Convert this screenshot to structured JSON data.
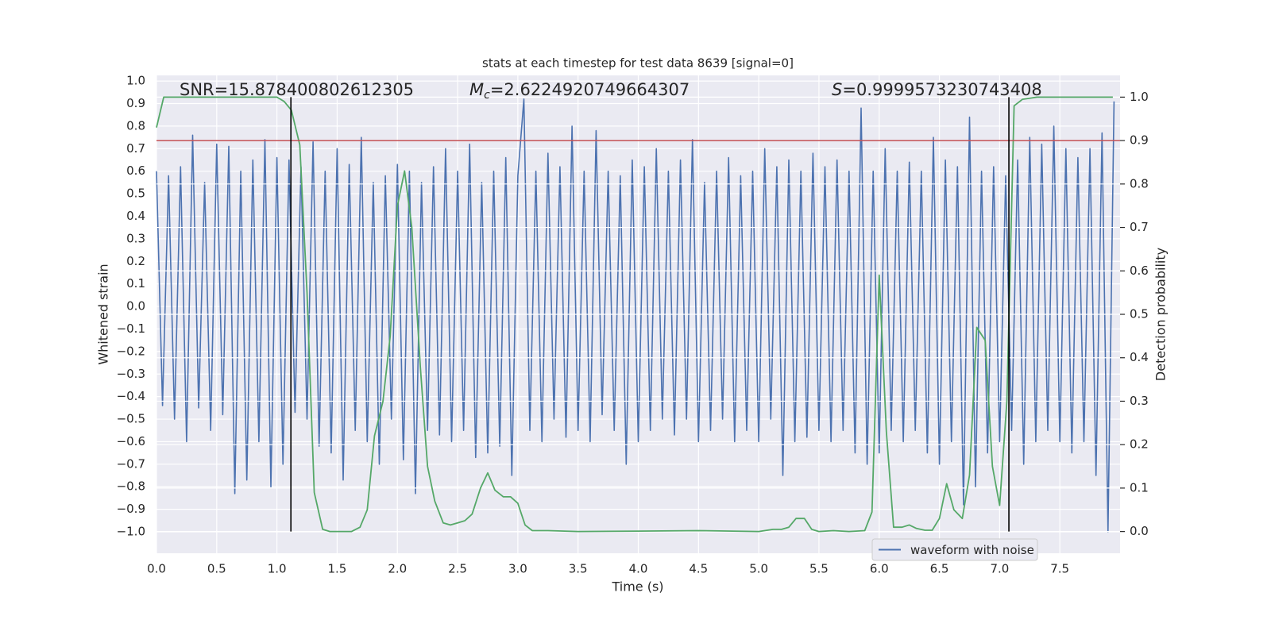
{
  "chart_data": {
    "type": "line",
    "title": "stats at each timestep for test data 8639 [signal=0]",
    "xlabel": "Time (s)",
    "ylabel": "Whitened strain",
    "y2label": "Detection probability",
    "xlim": [
      0,
      8.0
    ],
    "ylim": [
      -1.095,
      1.025
    ],
    "y2lim": [
      -0.05,
      1.05
    ],
    "grid": true,
    "legend": "lower right",
    "xticks": [
      {
        "value": 0,
        "label": "0.0"
      },
      0.5,
      {
        "value": 1,
        "label": "1.0"
      },
      1.5,
      {
        "value": 2,
        "label": "2.0"
      },
      2.5,
      {
        "value": 3,
        "label": "3.0"
      },
      3.5,
      {
        "value": 4,
        "label": "4.0"
      },
      4.5,
      {
        "value": 5,
        "label": "5.0"
      },
      5.5,
      {
        "value": 6,
        "label": "6.0"
      },
      6.5,
      {
        "value": 7,
        "label": "7.0"
      },
      7.5
    ],
    "yticks": [
      {
        "value": 1,
        "label": "1.0"
      },
      {
        "value": 0.9,
        "label": "0.9"
      },
      {
        "value": 0.8,
        "label": "0.8"
      },
      {
        "value": 0.7,
        "label": "0.7"
      },
      {
        "value": 0.6,
        "label": "0.6"
      },
      {
        "value": 0.5,
        "label": "0.5"
      },
      {
        "value": 0.4,
        "label": "0.4"
      },
      {
        "value": 0.3,
        "label": "0.3"
      },
      {
        "value": 0.2,
        "label": "0.2"
      },
      {
        "value": 0.1,
        "label": "0.1"
      },
      {
        "value": 0,
        "label": "0.0"
      },
      {
        "value": -0.1,
        "label": "−0.1"
      },
      {
        "value": -0.2,
        "label": "−0.2"
      },
      {
        "value": -0.3,
        "label": "−0.3"
      },
      {
        "value": -0.4,
        "label": "−0.4"
      },
      {
        "value": -0.5,
        "label": "−0.5"
      },
      {
        "value": -0.6,
        "label": "−0.6"
      },
      {
        "value": -0.7,
        "label": "−0.7"
      },
      {
        "value": -0.8,
        "label": "−0.8"
      },
      {
        "value": -0.9,
        "label": "−0.9"
      },
      {
        "value": -1,
        "label": "−1.0"
      }
    ],
    "y2ticks": [
      {
        "value": 0,
        "label": "0.0"
      },
      0.1,
      0.2,
      0.3,
      0.4,
      0.5,
      0.6,
      0.7,
      0.8,
      0.9,
      {
        "value": 1,
        "label": "1.0"
      }
    ],
    "annotations": [
      {
        "parts": [
          {
            "text": "SNR=15.878400802612305"
          }
        ]
      },
      {
        "parts": [
          {
            "text": "M",
            "style": "italic"
          },
          {
            "text": "c",
            "style": "subscript"
          },
          {
            "text": "=2.6224920749664307"
          }
        ]
      },
      {
        "parts": [
          {
            "text": "S",
            "style": "italic"
          },
          {
            "text": "=0.9999573230743408"
          }
        ]
      }
    ],
    "hlines": [
      {
        "value": 0.9,
        "axis": "y2",
        "color": "#c44e52"
      }
    ],
    "vlines": [
      {
        "x": 1.116,
        "y2": [
          0,
          1
        ],
        "color": "#000000"
      },
      {
        "x": 7.077,
        "y2": [
          0,
          1
        ],
        "color": "#000000"
      }
    ],
    "series": [
      {
        "name": "waveform with noise",
        "color": "#4c72b0",
        "axis": "y",
        "x": [
          0,
          0.05,
          0.1,
          0.15,
          0.2,
          0.25,
          0.3,
          0.35,
          0.4,
          0.45,
          0.5,
          0.55,
          0.6,
          0.65,
          0.7,
          0.75,
          0.8,
          0.85,
          0.9,
          0.95,
          1,
          1.05,
          1.1,
          1.15,
          1.2,
          1.25,
          1.3,
          1.35,
          1.4,
          1.45,
          1.5,
          1.55,
          1.6,
          1.65,
          1.7,
          1.75,
          1.8,
          1.85,
          1.9,
          1.95,
          2,
          2.05,
          2.1,
          2.15,
          2.2,
          2.25,
          2.3,
          2.35,
          2.4,
          2.45,
          2.5,
          2.55,
          2.6,
          2.65,
          2.7,
          2.75,
          2.8,
          2.85,
          2.9,
          2.95,
          3,
          3.05,
          3.1,
          3.15,
          3.2,
          3.25,
          3.3,
          3.35,
          3.4,
          3.45,
          3.5,
          3.55,
          3.6,
          3.65,
          3.7,
          3.75,
          3.8,
          3.85,
          3.9,
          3.95,
          4,
          4.05,
          4.1,
          4.15,
          4.2,
          4.25,
          4.3,
          4.35,
          4.4,
          4.45,
          4.5,
          4.55,
          4.6,
          4.65,
          4.7,
          4.75,
          4.8,
          4.85,
          4.9,
          4.95,
          5,
          5.05,
          5.1,
          5.15,
          5.2,
          5.25,
          5.3,
          5.35,
          5.4,
          5.45,
          5.5,
          5.55,
          5.6,
          5.65,
          5.7,
          5.75,
          5.8,
          5.85,
          5.9,
          5.95,
          6,
          6.05,
          6.1,
          6.15,
          6.2,
          6.25,
          6.3,
          6.35,
          6.4,
          6.45,
          6.5,
          6.55,
          6.6,
          6.65,
          6.7,
          6.75,
          6.8,
          6.85,
          6.9,
          6.95,
          7,
          7.05,
          7.1,
          7.15,
          7.2,
          7.25,
          7.3,
          7.35,
          7.4,
          7.45,
          7.5,
          7.55,
          7.6,
          7.65,
          7.7,
          7.75,
          7.8,
          7.85,
          7.9,
          7.95
        ],
        "values": [
          0.6,
          -0.44,
          0.58,
          -0.5,
          0.62,
          -0.6,
          0.76,
          -0.45,
          0.55,
          -0.55,
          0.72,
          -0.48,
          0.71,
          -0.83,
          0.6,
          -0.77,
          0.65,
          -0.6,
          0.74,
          -0.8,
          0.66,
          -0.7,
          0.65,
          -0.47,
          0.62,
          -0.5,
          0.73,
          -0.62,
          0.6,
          -0.65,
          0.7,
          -0.77,
          0.63,
          -0.55,
          0.75,
          -0.6,
          0.55,
          -0.7,
          0.58,
          -0.5,
          0.63,
          -0.68,
          0.6,
          -0.83,
          0.55,
          -0.55,
          0.62,
          -0.57,
          0.7,
          -0.6,
          0.6,
          -0.55,
          0.72,
          -0.67,
          0.55,
          -0.65,
          0.6,
          -0.62,
          0.66,
          -0.75,
          0.58,
          0.92,
          -0.55,
          0.6,
          -0.6,
          0.68,
          -0.5,
          0.62,
          -0.58,
          0.8,
          -0.55,
          0.6,
          -0.6,
          0.78,
          -0.48,
          0.6,
          -0.55,
          0.58,
          -0.7,
          0.65,
          -0.6,
          0.62,
          -0.55,
          0.7,
          -0.5,
          0.6,
          -0.57,
          0.65,
          -0.5,
          0.74,
          -0.6,
          0.55,
          -0.55,
          0.6,
          -0.5,
          0.66,
          -0.6,
          0.58,
          -0.55,
          0.6,
          -0.6,
          0.7,
          -0.5,
          0.62,
          -0.75,
          0.65,
          -0.6,
          0.6,
          -0.58,
          0.68,
          -0.55,
          0.62,
          -0.6,
          0.65,
          -0.55,
          0.6,
          -0.65,
          0.88,
          -0.7,
          0.6,
          -0.65,
          0.7,
          -0.55,
          0.6,
          -0.6,
          0.64,
          -0.55,
          0.6,
          -0.65,
          0.75,
          -0.7,
          0.65,
          -0.6,
          0.62,
          -0.88,
          0.84,
          -0.8,
          0.6,
          -0.65,
          0.62,
          -0.6,
          0.58,
          -0.55,
          0.65,
          -0.7,
          0.75,
          -0.6,
          0.72,
          -0.55,
          0.8,
          -0.6,
          0.7,
          -0.65,
          0.66,
          -0.6,
          0.7,
          -0.75,
          0.77,
          -1.0,
          0.91
        ]
      },
      {
        "color": "#55a868",
        "axis": "y2",
        "x": [
          0,
          0.06,
          1,
          1.06,
          1.12,
          1.19,
          1.25,
          1.31,
          1.38,
          1.44,
          1.62,
          1.69,
          1.75,
          1.81,
          1.88,
          1.94,
          2,
          2.06,
          2.12,
          2.19,
          2.25,
          2.31,
          2.38,
          2.44,
          2.5,
          2.56,
          2.62,
          2.69,
          2.75,
          2.81,
          2.88,
          2.94,
          3,
          3.06,
          3.12,
          3.25,
          3.5,
          4,
          4.5,
          5,
          5.12,
          5.19,
          5.25,
          5.31,
          5.38,
          5.44,
          5.5,
          5.62,
          5.75,
          5.88,
          5.94,
          6,
          6.06,
          6.12,
          6.19,
          6.25,
          6.31,
          6.38,
          6.44,
          6.5,
          6.56,
          6.62,
          6.69,
          6.75,
          6.81,
          6.88,
          6.94,
          7,
          7.06,
          7.12,
          7.19,
          7.31,
          7.94
        ],
        "values": [
          0.93,
          1.0,
          1.0,
          0.99,
          0.97,
          0.89,
          0.55,
          0.09,
          0.005,
          0.0,
          0.0,
          0.01,
          0.05,
          0.22,
          0.3,
          0.45,
          0.75,
          0.83,
          0.7,
          0.38,
          0.15,
          0.07,
          0.02,
          0.015,
          0.02,
          0.025,
          0.04,
          0.1,
          0.135,
          0.095,
          0.08,
          0.08,
          0.065,
          0.015,
          0.002,
          0.002,
          0.0,
          0.001,
          0.002,
          0.0,
          0.005,
          0.005,
          0.01,
          0.03,
          0.03,
          0.005,
          0.0,
          0.002,
          0.0,
          0.002,
          0.045,
          0.59,
          0.23,
          0.01,
          0.01,
          0.015,
          0.007,
          0.003,
          0.003,
          0.03,
          0.11,
          0.05,
          0.03,
          0.13,
          0.47,
          0.44,
          0.15,
          0.06,
          0.3,
          0.98,
          0.995,
          1.0,
          1.0
        ]
      }
    ]
  }
}
